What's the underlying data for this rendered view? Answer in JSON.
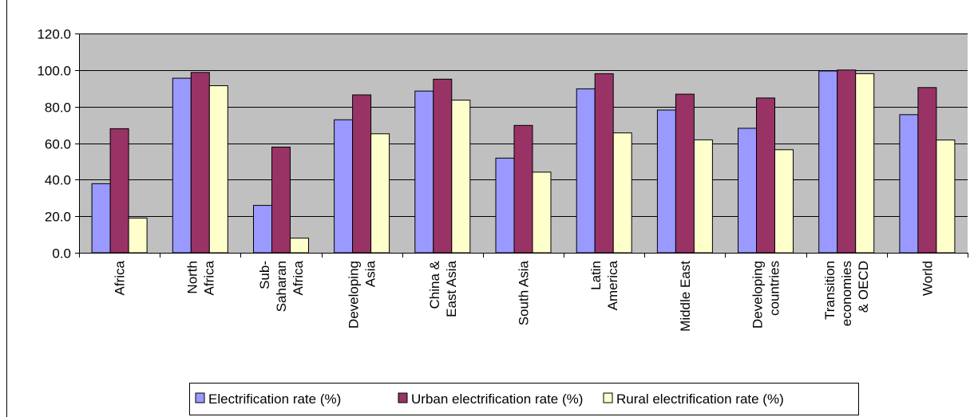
{
  "chart_data": {
    "type": "bar",
    "categories": [
      [
        "Africa"
      ],
      [
        "North",
        "Africa"
      ],
      [
        "Sub-",
        "Saharan",
        "Africa"
      ],
      [
        "Developing",
        "Asia"
      ],
      [
        "China &",
        "East Asia"
      ],
      [
        "South Asia"
      ],
      [
        "Latin",
        "America"
      ],
      [
        "Middle East"
      ],
      [
        "Developing",
        "countries"
      ],
      [
        "Transition",
        "economies",
        "& OECD"
      ],
      [
        "World"
      ]
    ],
    "series": [
      {
        "name": "Electrification rate (%)",
        "color": "#9999ff",
        "values": [
          37.8,
          95.5,
          25.9,
          72.8,
          88.5,
          51.8,
          89.7,
          78.1,
          68.1,
          99.5,
          75.6
        ]
      },
      {
        "name": "Urban electrification rate (%)",
        "color": "#993366",
        "values": [
          67.9,
          98.7,
          57.8,
          86.4,
          95.0,
          69.7,
          98.0,
          86.8,
          84.7,
          100.0,
          90.4
        ]
      },
      {
        "name": "Rural electrification rate (%)",
        "color": "#ffffcc",
        "values": [
          19.0,
          91.4,
          8.0,
          65.1,
          83.5,
          44.1,
          65.6,
          61.8,
          56.4,
          98.0,
          61.7
        ]
      }
    ],
    "ylim": [
      0,
      120
    ],
    "yticks": [
      "0.0",
      "20.0",
      "40.0",
      "60.0",
      "80.0",
      "100.0",
      "120.0"
    ],
    "plot_background": "#c0c0c0",
    "grid": true,
    "legend_position": "bottom"
  }
}
